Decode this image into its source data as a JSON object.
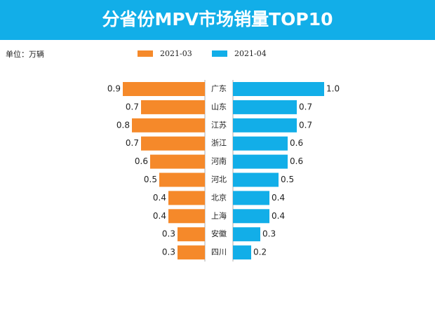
{
  "chart_data": {
    "type": "butterfly-bar",
    "title": "分省份MPV市场销量TOP10",
    "unit_label": "单位：万辆",
    "categories": [
      "广东",
      "山东",
      "江苏",
      "浙江",
      "河南",
      "河北",
      "北京",
      "上海",
      "安徽",
      "四川"
    ],
    "series": [
      {
        "name": "2021-03",
        "color": "#f5892a",
        "side": "left",
        "values": [
          0.9,
          0.7,
          0.8,
          0.7,
          0.6,
          0.5,
          0.4,
          0.4,
          0.3,
          0.3
        ]
      },
      {
        "name": "2021-04",
        "color": "#12aee8",
        "side": "right",
        "values": [
          1.0,
          0.7,
          0.7,
          0.6,
          0.6,
          0.5,
          0.4,
          0.4,
          0.3,
          0.2
        ],
        "value_labels": [
          "1.0",
          "0.7",
          "0.7",
          "0.6",
          "0.6",
          "0.5",
          "0.4",
          "0.4",
          "0.3",
          "0.2"
        ]
      }
    ]
  }
}
